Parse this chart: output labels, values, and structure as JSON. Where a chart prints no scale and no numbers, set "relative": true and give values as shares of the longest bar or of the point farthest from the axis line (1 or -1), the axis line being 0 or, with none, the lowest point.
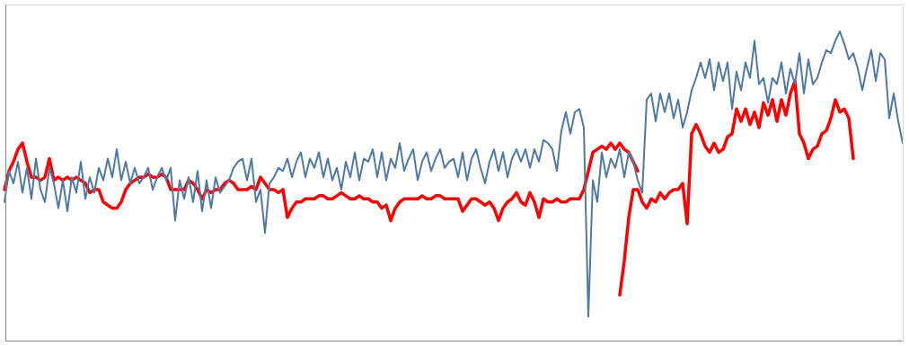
{
  "chart_data": {
    "type": "line",
    "relative": true,
    "legend": false,
    "marker": "none",
    "tick_labels": false,
    "categories": [
      null,
      null,
      null,
      null,
      null,
      null,
      null,
      null,
      null,
      null,
      null,
      null,
      null,
      null,
      null,
      null,
      null,
      null,
      null,
      null,
      null,
      null,
      null,
      null,
      null,
      null,
      null,
      null,
      null,
      null,
      null,
      null,
      null,
      null,
      null,
      null,
      null,
      null,
      null,
      null,
      null,
      null,
      null,
      null,
      null,
      null,
      null,
      null,
      null,
      null,
      null,
      null,
      null,
      null,
      null,
      null,
      null,
      null,
      null,
      null,
      null,
      null,
      null,
      null,
      null,
      null,
      null,
      null,
      null,
      null,
      null,
      null,
      null,
      null,
      null,
      null,
      null,
      null,
      null,
      null,
      null,
      null,
      null,
      null,
      null,
      null,
      null,
      null,
      null,
      null,
      null,
      null,
      null,
      null,
      null,
      null,
      null,
      null,
      null,
      null,
      null,
      null,
      null,
      null,
      null,
      null,
      null,
      null,
      null,
      null,
      null,
      null,
      null,
      null,
      null,
      null,
      null,
      null,
      null,
      null,
      null,
      null,
      null,
      null,
      null,
      null,
      null,
      null,
      null,
      null,
      null,
      null,
      null,
      null,
      null,
      null,
      null,
      null,
      null,
      null,
      null,
      null,
      null,
      null,
      null,
      null,
      null,
      null,
      null,
      null,
      null,
      null,
      null,
      null,
      null,
      null,
      null,
      null,
      null,
      null,
      null,
      null,
      null,
      null,
      null,
      null,
      null,
      null,
      null,
      null,
      null,
      null,
      null,
      null,
      null,
      null,
      null,
      null,
      null,
      null,
      null,
      null,
      null,
      null,
      null,
      null,
      null,
      null,
      null,
      null,
      null,
      null,
      null,
      null,
      null,
      null,
      null,
      null,
      null,
      null,
      null
    ],
    "series": [
      {
        "color": "#4e79a7",
        "values": [
          0.45,
          0.55,
          0.51,
          0.58,
          0.48,
          0.56,
          0.46,
          0.59,
          0.49,
          0.45,
          0.56,
          0.51,
          0.43,
          0.52,
          0.42,
          0.53,
          0.48,
          0.58,
          0.46,
          0.53,
          0.48,
          0.56,
          0.52,
          0.59,
          0.53,
          0.62,
          0.52,
          0.58,
          0.51,
          0.56,
          0.51,
          0.53,
          0.56,
          0.49,
          0.53,
          0.56,
          0.52,
          0.56,
          0.39,
          0.52,
          0.46,
          0.53,
          0.45,
          0.55,
          0.42,
          0.52,
          0.43,
          0.53,
          0.48,
          0.5,
          0.52,
          0.56,
          0.58,
          0.59,
          0.52,
          0.59,
          0.45,
          0.49,
          0.35,
          0.51,
          0.53,
          0.56,
          0.55,
          0.59,
          0.53,
          0.58,
          0.61,
          0.53,
          0.59,
          0.56,
          0.61,
          0.53,
          0.59,
          0.52,
          0.56,
          0.49,
          0.58,
          0.53,
          0.61,
          0.52,
          0.59,
          0.58,
          0.62,
          0.53,
          0.61,
          0.52,
          0.59,
          0.56,
          0.64,
          0.55,
          0.59,
          0.62,
          0.52,
          0.58,
          0.61,
          0.55,
          0.59,
          0.62,
          0.56,
          0.58,
          0.59,
          0.53,
          0.61,
          0.52,
          0.59,
          0.62,
          0.56,
          0.51,
          0.58,
          0.62,
          0.55,
          0.61,
          0.53,
          0.59,
          0.62,
          0.58,
          0.62,
          0.56,
          0.62,
          0.58,
          0.65,
          0.64,
          0.62,
          0.55,
          0.68,
          0.74,
          0.67,
          0.74,
          0.75,
          0.69,
          0.08,
          0.52,
          0.45,
          0.61,
          0.53,
          0.59,
          0.56,
          0.62,
          0.53,
          0.61,
          0.58,
          0.52,
          0.48,
          0.78,
          0.8,
          0.71,
          0.8,
          0.74,
          0.8,
          0.72,
          0.78,
          0.69,
          0.74,
          0.81,
          0.85,
          0.9,
          0.85,
          0.91,
          0.81,
          0.9,
          0.84,
          0.9,
          0.75,
          0.87,
          0.81,
          0.9,
          0.85,
          0.97,
          0.83,
          0.85,
          0.77,
          0.85,
          0.83,
          0.9,
          0.8,
          0.88,
          0.83,
          0.93,
          0.8,
          0.91,
          0.83,
          0.85,
          0.9,
          0.94,
          0.93,
          0.97,
          1,
          0.96,
          0.91,
          0.93,
          0.88,
          0.81,
          0.88,
          0.94,
          0.84,
          0.93,
          0.91,
          0.72,
          0.8,
          0.71,
          0.64
        ]
      },
      {
        "color": "#ff0000",
        "values": [
          0.49,
          0.55,
          0.58,
          0.62,
          0.64,
          0.58,
          0.53,
          0.53,
          0.52,
          0.53,
          0.59,
          0.52,
          0.53,
          0.52,
          0.53,
          0.52,
          0.53,
          0.52,
          0.51,
          0.48,
          0.49,
          0.49,
          0.45,
          0.44,
          0.43,
          0.43,
          0.45,
          0.49,
          0.51,
          0.52,
          0.53,
          0.53,
          0.54,
          0.53,
          0.53,
          0.54,
          0.53,
          0.49,
          0.49,
          0.49,
          0.49,
          0.52,
          0.51,
          0.49,
          0.46,
          0.49,
          0.48,
          0.49,
          0.49,
          0.51,
          0.52,
          0.51,
          0.49,
          0.49,
          0.49,
          0.5,
          0.49,
          0.53,
          0.51,
          0.49,
          0.49,
          0.48,
          0.49,
          0.4,
          0.43,
          0.45,
          0.45,
          0.46,
          0.46,
          0.46,
          0.47,
          0.47,
          0.46,
          0.46,
          0.47,
          0.48,
          0.47,
          0.46,
          0.46,
          0.47,
          0.46,
          0.46,
          0.45,
          0.45,
          0.43,
          0.44,
          0.39,
          0.43,
          0.45,
          0.46,
          0.46,
          0.46,
          0.46,
          0.47,
          0.46,
          0.46,
          0.47,
          0.47,
          0.46,
          0.46,
          0.46,
          0.46,
          0.42,
          0.44,
          0.46,
          0.46,
          0.45,
          0.44,
          0.45,
          0.43,
          0.39,
          0.43,
          0.45,
          0.46,
          0.48,
          0.45,
          0.44,
          0.48,
          0.45,
          0.4,
          0.46,
          0.45,
          0.45,
          0.46,
          0.45,
          0.45,
          0.46,
          0.46,
          0.46,
          0.49,
          0.55,
          0.61,
          0.62,
          0.63,
          0.62,
          0.64,
          0.62,
          0.64,
          0.62,
          0.61,
          0.58,
          0.55,
          null,
          null,
          null,
          null,
          null,
          null,
          null,
          null,
          null,
          null,
          null,
          null,
          null,
          null,
          null,
          null,
          null,
          null,
          null,
          null,
          null,
          null,
          null,
          null,
          null,
          null,
          null,
          null,
          null,
          null,
          null,
          null,
          null,
          null,
          null,
          null,
          null,
          null,
          null,
          null,
          null,
          null,
          null,
          null,
          null,
          null,
          null,
          null,
          null,
          null,
          null,
          null,
          null,
          null,
          null,
          null,
          null,
          null,
          null
        ]
      },
      {
        "color": "#ff0000",
        "values": [
          null,
          null,
          null,
          null,
          null,
          null,
          null,
          null,
          null,
          null,
          null,
          null,
          null,
          null,
          null,
          null,
          null,
          null,
          null,
          null,
          null,
          null,
          null,
          null,
          null,
          null,
          null,
          null,
          null,
          null,
          null,
          null,
          null,
          null,
          null,
          null,
          null,
          null,
          null,
          null,
          null,
          null,
          null,
          null,
          null,
          null,
          null,
          null,
          null,
          null,
          null,
          null,
          null,
          null,
          null,
          null,
          null,
          null,
          null,
          null,
          null,
          null,
          null,
          null,
          null,
          null,
          null,
          null,
          null,
          null,
          null,
          null,
          null,
          null,
          null,
          null,
          null,
          null,
          null,
          null,
          null,
          null,
          null,
          null,
          null,
          null,
          null,
          null,
          null,
          null,
          null,
          null,
          null,
          null,
          null,
          null,
          null,
          null,
          null,
          null,
          null,
          null,
          null,
          null,
          null,
          null,
          null,
          null,
          null,
          null,
          null,
          null,
          null,
          null,
          null,
          null,
          null,
          null,
          null,
          null,
          null,
          null,
          null,
          null,
          null,
          null,
          null,
          null,
          null,
          null,
          null,
          null,
          null,
          null,
          null,
          null,
          null,
          0.15,
          0.26,
          0.4,
          0.49,
          0.49,
          0.45,
          0.43,
          0.46,
          0.45,
          0.48,
          0.46,
          0.48,
          0.49,
          0.49,
          0.51,
          0.38,
          0.67,
          0.7,
          0.67,
          0.63,
          0.61,
          0.64,
          0.61,
          0.62,
          0.66,
          0.67,
          0.75,
          0.71,
          0.75,
          0.7,
          0.74,
          0.69,
          0.77,
          0.73,
          0.78,
          0.71,
          0.78,
          0.73,
          0.8,
          0.84,
          0.67,
          0.64,
          0.59,
          0.62,
          0.63,
          0.67,
          0.68,
          0.72,
          0.78,
          0.74,
          0.75,
          0.72,
          0.59,
          null,
          null,
          null,
          null,
          null,
          null,
          null,
          null,
          null,
          null,
          null
        ]
      }
    ]
  }
}
